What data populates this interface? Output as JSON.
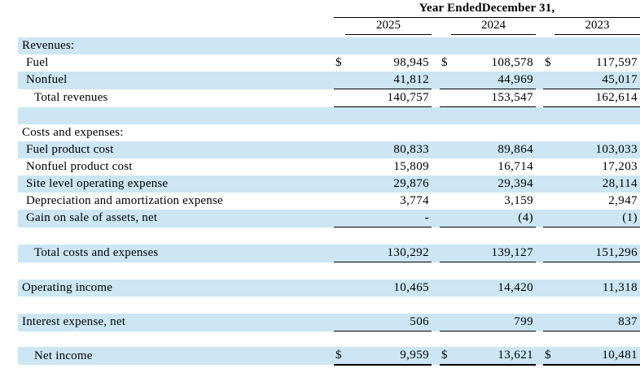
{
  "header": {
    "title": "Year EndedDecember 31,",
    "columns": [
      "2025",
      "2024",
      "2023"
    ]
  },
  "colors": {
    "row_highlight": "#cce6f4",
    "rule": "#000000",
    "text": "#000000",
    "background": "#ffffff"
  },
  "rows": [
    {
      "type": "spacer",
      "bg": "white",
      "h": 3
    },
    {
      "label": "Revenues:",
      "indent": 0,
      "bg": "blue"
    },
    {
      "label": "Fuel",
      "indent": 1,
      "bg": "white",
      "dollar": true,
      "values": [
        "98,945",
        "108,578",
        "117,597"
      ]
    },
    {
      "label": "Nonfuel",
      "indent": 1,
      "bg": "blue",
      "values": [
        "41,812",
        "44,969",
        "45,017"
      ],
      "underline": "single"
    },
    {
      "label": "Total revenues",
      "indent": 2,
      "bg": "white",
      "values": [
        "140,757",
        "153,547",
        "162,614"
      ],
      "underline": "single"
    },
    {
      "type": "spacer",
      "bg": "blue"
    },
    {
      "label": "Costs and expenses:",
      "indent": 0,
      "bg": "white"
    },
    {
      "label": "Fuel product cost",
      "indent": 1,
      "bg": "blue",
      "values": [
        "80,833",
        "89,864",
        "103,033"
      ]
    },
    {
      "label": "Nonfuel product cost",
      "indent": 1,
      "bg": "white",
      "values": [
        "15,809",
        "16,714",
        "17,203"
      ]
    },
    {
      "label": "Site level operating expense",
      "indent": 1,
      "bg": "blue",
      "values": [
        "29,876",
        "29,394",
        "28,114"
      ]
    },
    {
      "label": "Depreciation and amortization expense",
      "indent": 1,
      "bg": "white",
      "values": [
        "3,774",
        "3,159",
        "2,947"
      ]
    },
    {
      "label": "Gain on sale of assets, net",
      "indent": 1,
      "bg": "blue",
      "values": [
        "-",
        "(4)",
        "(1)"
      ],
      "underline": "single"
    },
    {
      "type": "spacer",
      "bg": "white"
    },
    {
      "label": "Total costs and expenses",
      "indent": 2,
      "bg": "blue",
      "values": [
        "130,292",
        "139,127",
        "151,296"
      ],
      "underline": "single"
    },
    {
      "type": "spacer",
      "bg": "white"
    },
    {
      "label": "Operating income",
      "indent": 0,
      "bg": "blue",
      "values": [
        "10,465",
        "14,420",
        "11,318"
      ]
    },
    {
      "type": "spacer",
      "bg": "white"
    },
    {
      "label": "Interest expense, net",
      "indent": 0,
      "bg": "blue",
      "values": [
        "506",
        "799",
        "837"
      ],
      "underline": "single"
    },
    {
      "type": "spacer",
      "bg": "white",
      "h": 19
    },
    {
      "label": "Net income",
      "indent": 2,
      "bg": "blue",
      "dollar": true,
      "values": [
        "9,959",
        "13,621",
        "10,481"
      ],
      "underline": "double",
      "h": 22
    }
  ]
}
